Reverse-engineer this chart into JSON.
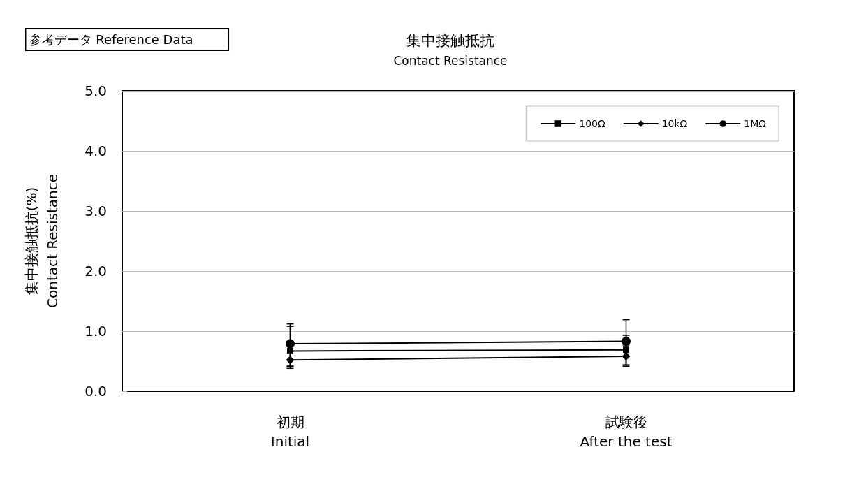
{
  "chart_data": {
    "type": "line",
    "title": "集中接触抵抗",
    "subtitle": "Contact Resistance",
    "ylabel": "集中接触抵抗(%)\nContact Resistance",
    "annotations": [
      "参考データ Reference Data"
    ],
    "categories": [
      "初期\nInitial",
      "試験後\nAfter the test"
    ],
    "ylim": [
      0,
      5
    ],
    "yticks": [
      {
        "value": 0,
        "label": "0.0"
      },
      {
        "value": 1,
        "label": "1.0"
      },
      {
        "value": 2,
        "label": "2.0"
      },
      {
        "value": 3,
        "label": "3.0"
      },
      {
        "value": 4,
        "label": "4.0"
      },
      {
        "value": 5,
        "label": "5.0"
      }
    ],
    "grid": "y",
    "legend": "top right",
    "line_style": "solid",
    "series": [
      {
        "name": "100Ω",
        "color": "#000000",
        "marker": "square",
        "values": [
          0.67,
          0.69
        ],
        "errors": [
          [
            0.42,
            1.08
          ],
          [
            0.44,
            0.93
          ]
        ]
      },
      {
        "name": "10kΩ",
        "color": "#000000",
        "marker": "diamond",
        "values": [
          0.52,
          0.58
        ],
        "errors": [
          [
            0.41,
            0.74
          ],
          [
            0.41,
            0.77
          ]
        ]
      },
      {
        "name": "1MΩ",
        "color": "#000000",
        "marker": "circle",
        "values": [
          0.79,
          0.83
        ],
        "errors": [
          [
            0.38,
            1.12
          ],
          [
            0.43,
            1.19
          ]
        ]
      }
    ]
  }
}
